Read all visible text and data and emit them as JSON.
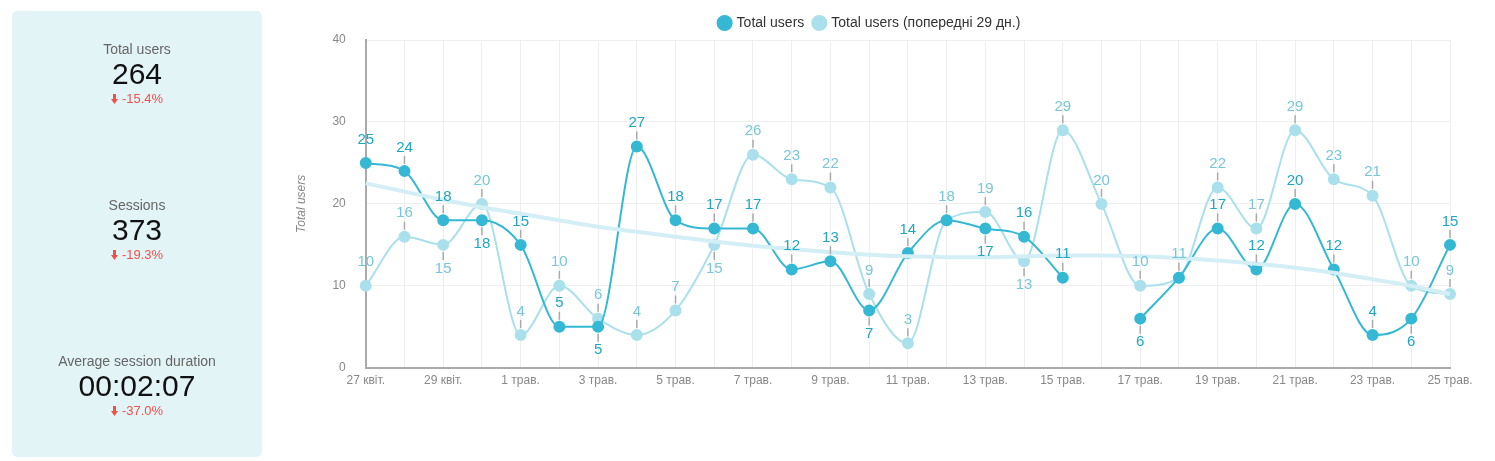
{
  "chart_data": [
    {
      "type": "other",
      "annotations": [
        "Total users",
        "264",
        "-15.4%",
        "Sessions",
        "373",
        "-19.3%",
        "Average session duration",
        "00:02:07",
        "-37.0%"
      ]
    },
    {
      "type": "line",
      "ylabel": "Total users",
      "ylim": [
        0,
        40
      ],
      "yticks": [
        0,
        10,
        20,
        30,
        40
      ],
      "grid": true,
      "legend": "top",
      "marker": "circle",
      "categories": [
        "27 квіт.",
        null,
        "29 квіт.",
        null,
        "1 трав.",
        null,
        "3 трав.",
        null,
        "5 трав.",
        null,
        "7 трав.",
        null,
        "9 трав.",
        null,
        "11 трав.",
        null,
        "13 трав.",
        null,
        "15 трав.",
        null,
        "17 трав.",
        null,
        "19 трав.",
        null,
        "21 трав.",
        null,
        "23 трав.",
        null,
        "25 трав."
      ],
      "series": [
        {
          "name": "Total users",
          "color": "#35b8d4",
          "values": [
            25,
            24,
            18,
            18,
            15,
            5,
            5,
            27,
            18,
            17,
            17,
            12,
            13,
            7,
            14,
            18,
            17,
            16,
            11,
            null,
            6,
            11,
            17,
            12,
            20,
            12,
            4,
            6,
            15
          ],
          "value_labels": [
            "25",
            "24",
            "18",
            "18",
            "15",
            "5",
            "5",
            "27",
            "18",
            "17",
            "17",
            "12",
            "13",
            "7",
            "14",
            null,
            "17",
            "16",
            "11",
            null,
            "6",
            null,
            "17",
            "12",
            "20",
            "12",
            "4",
            "6",
            "15"
          ]
        },
        {
          "name": "Total users (попередні 29 дн.)",
          "color": "#a9e0eb",
          "values": [
            10,
            16,
            15,
            20,
            4,
            10,
            6,
            4,
            7,
            15,
            26,
            23,
            22,
            9,
            3,
            18,
            19,
            13,
            29,
            20,
            10,
            11,
            22,
            17,
            29,
            23,
            21,
            10,
            9
          ],
          "value_labels": [
            "10",
            "16",
            "15",
            "20",
            "4",
            "10",
            "6",
            "4",
            "7",
            "15",
            "26",
            "23",
            "22",
            "9",
            "3",
            "18",
            "19",
            "13",
            "29",
            "20",
            "10",
            "11",
            "22",
            "17",
            "29",
            "23",
            "21",
            "10",
            "9"
          ]
        },
        {
          "type": "line",
          "marker": "none",
          "color": "#d3eff5",
          "values": [
            22.5,
            21.5,
            20.5,
            19.6,
            18.8,
            18,
            17.2,
            16.6,
            16,
            15.4,
            14.9,
            14.5,
            14.1,
            13.8,
            13.6,
            13.5,
            13.5,
            13.6,
            13.7,
            13.7,
            13.6,
            13.4,
            13.1,
            12.7,
            12.2,
            11.6,
            10.8,
            10,
            9
          ]
        }
      ]
    }
  ]
}
